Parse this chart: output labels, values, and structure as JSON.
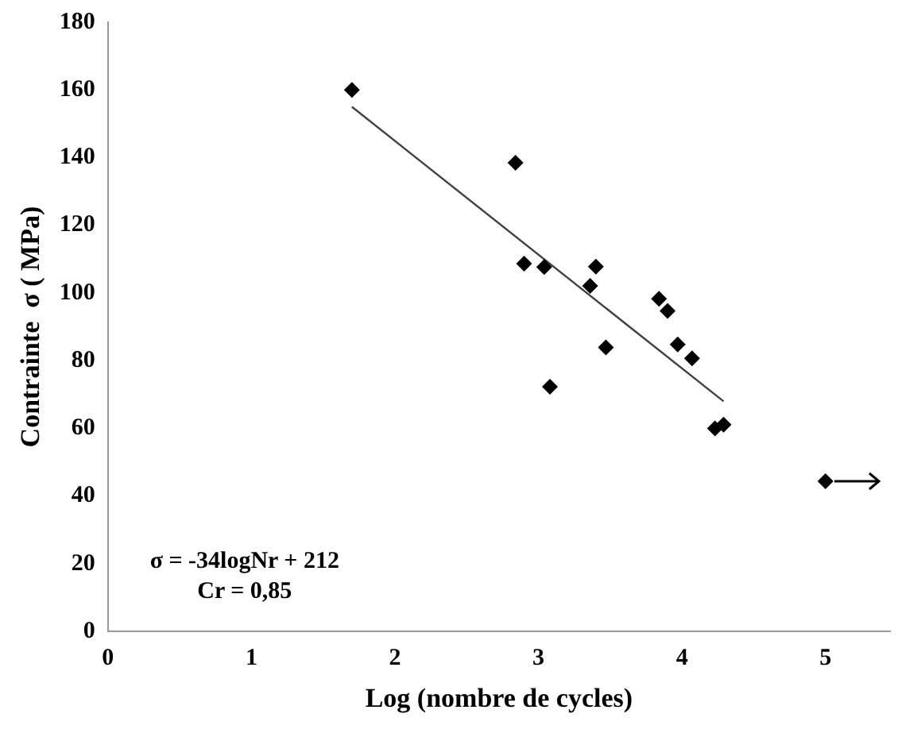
{
  "chart_data": {
    "type": "scatter",
    "xlabel": "Log (nombre de cycles)",
    "ylabel": "Contrainte  σ ( MPa)",
    "series": [
      {
        "type": "scatter",
        "color": "#000000",
        "marker": "diamond",
        "x": [
          1.7,
          2.84,
          2.9,
          3.04,
          3.08,
          3.4,
          3.36,
          3.47,
          3.84,
          3.9,
          3.97,
          4.07,
          4.23,
          4.29,
          5.0
        ],
        "values": [
          160,
          138.5,
          108.7,
          107.7,
          72.3,
          107.8,
          102.1,
          83.9,
          98.3,
          94.7,
          84.8,
          80.7,
          60.0,
          61.1,
          44.4
        ]
      },
      {
        "type": "line",
        "color": "#404040",
        "marker": "none",
        "x": [
          1.7,
          4.29
        ],
        "values": [
          155,
          68
        ]
      }
    ],
    "annotations": [
      "σ = -34logNr + 212",
      "Cr = 0,85"
    ],
    "xlim": [
      0,
      5.45
    ],
    "xticks": [
      0,
      1,
      2,
      3,
      4,
      5
    ],
    "ylim": [
      0,
      180
    ],
    "yticks": [
      0,
      20,
      40,
      60,
      80,
      100,
      120,
      140,
      160,
      180
    ],
    "grid": false,
    "legend": false
  }
}
